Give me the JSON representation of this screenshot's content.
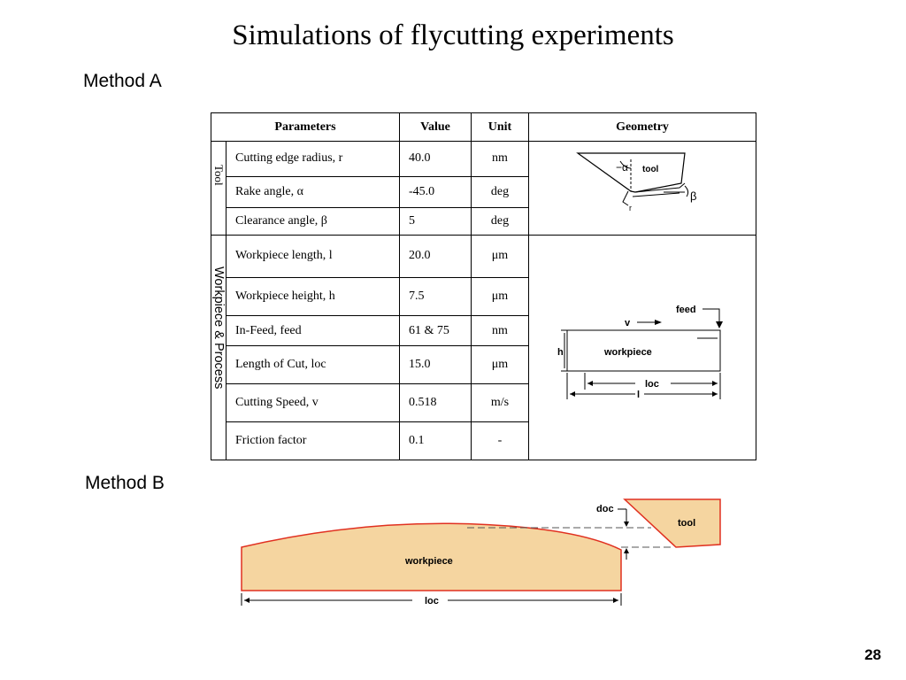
{
  "title": "Simulations of flycutting experiments",
  "method_a_label": "Method A",
  "method_b_label": "Method B",
  "page_number": "28",
  "table": {
    "headers": [
      "Parameters",
      "Value",
      "Unit",
      "Geometry"
    ],
    "groups": {
      "tool": "Tool",
      "workpiece_process": "Workpiece & Process"
    },
    "rows": [
      {
        "parameter": "Cutting edge radius, r",
        "value": "40.0",
        "unit": "nm"
      },
      {
        "parameter": "Rake angle, α",
        "value": "-45.0",
        "unit": "deg"
      },
      {
        "parameter": "Clearance angle, β",
        "value": "5",
        "unit": "deg"
      },
      {
        "parameter": "Workpiece length, l",
        "value": "20.0",
        "unit": "μm"
      },
      {
        "parameter": "Workpiece height, h",
        "value": "7.5",
        "unit": "μm"
      },
      {
        "parameter": "In-Feed, feed",
        "value": "61 & 75",
        "unit": "nm"
      },
      {
        "parameter": "Length of Cut, loc",
        "value": "15.0",
        "unit": "μm"
      },
      {
        "parameter": "Cutting Speed, v",
        "value": "0.518",
        "unit": "m/s"
      },
      {
        "parameter": "Friction factor",
        "value": "0.1",
        "unit": "-"
      }
    ]
  },
  "tool_diagram": {
    "tool_label": "tool",
    "alpha_label": "−α",
    "beta_label": "β",
    "r_label": "r"
  },
  "workpiece_diagram": {
    "feed_label": "feed",
    "v_label": "v",
    "h_label": "h",
    "workpiece_label": "workpiece",
    "loc_label": "loc",
    "l_label": "l"
  },
  "method_b_diagram": {
    "doc_label": "doc",
    "tool_label": "tool",
    "workpiece_label": "workpiece",
    "loc_label": "loc",
    "workpiece_fill": "#f5d5a0",
    "outline_color": "#e03020"
  }
}
